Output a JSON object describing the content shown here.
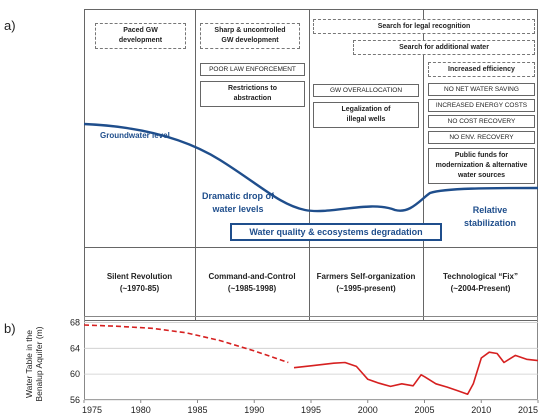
{
  "panel_a": {
    "label": "a)",
    "periods": [
      {
        "title": "Silent Revolution",
        "years": "(~1970-85)"
      },
      {
        "title": "Command-and-Control",
        "years": "(~1985-1998)"
      },
      {
        "title": "Farmers Self-organization",
        "years": "(~1995-present)"
      },
      {
        "title": "Technological “Fix”",
        "years": "(~2004-Present)"
      }
    ],
    "boxes": {
      "paced": "Paced GW development",
      "sharp": "Sharp & uncontrolled GW development",
      "poor_law": "POOR LAW ENFORCEMENT",
      "restrictions": "Restrictions to abstraction",
      "legal_recognition": "Search for legal recognition",
      "additional_water": "Search for additional water",
      "gw_overallocation": "GW OVERALLOCATION",
      "legalization": "Legalization of illegal wells",
      "increased_efficiency": "Increased efficiency",
      "no_net_saving": "NO NET WATER SAVING",
      "energy_costs": "INCREASED ENERGY COSTS",
      "no_cost_recovery": "NO COST RECOVERY",
      "no_env_recovery": "NO ENV. RECOVERY",
      "public_funds": "Public funds for modernization & alternative water sources"
    },
    "annotations": {
      "groundwater_level": "Groundwater level",
      "dramatic_drop": "Dramatic drop of water levels",
      "relative_stabilization": "Relative stabilization",
      "degradation": "Water quality & ecosystems degradation"
    },
    "colors": {
      "curve": "#1f4e8c",
      "border": "#666666"
    }
  },
  "panel_b": {
    "label": "b)",
    "chart_data": {
      "type": "line",
      "ylabel": "Water Table in the Benalup Aquifer (m)",
      "xlim": [
        1975,
        2015
      ],
      "ylim": [
        56,
        69
      ],
      "xticks": [
        1975,
        1980,
        1985,
        1990,
        1995,
        2000,
        2005,
        2010,
        2015
      ],
      "yticks": [
        56,
        60,
        64,
        68
      ],
      "series": [
        {
          "style": "dashed",
          "color": "#d62020",
          "x": [
            1975,
            1978,
            1981,
            1984,
            1987,
            1990,
            1993
          ],
          "y": [
            67.6,
            67.4,
            67.1,
            66.4,
            65.2,
            63.6,
            61.8
          ]
        },
        {
          "style": "solid",
          "color": "#d62020",
          "x": [
            1993.5,
            1995,
            1997,
            1998,
            1999,
            2000,
            2001,
            2002,
            2003,
            2004,
            2004.7,
            2005,
            2006,
            2007,
            2008,
            2008.8,
            2009.3,
            2010,
            2010.7,
            2011.4,
            2012,
            2013,
            2014,
            2015
          ],
          "y": [
            61.0,
            61.3,
            61.7,
            61.8,
            61.2,
            59.2,
            58.6,
            58.1,
            58.5,
            58.2,
            59.9,
            59.6,
            58.5,
            58.0,
            57.4,
            56.9,
            58.5,
            62.5,
            63.4,
            63.2,
            61.8,
            62.9,
            62.3,
            62.1
          ]
        }
      ]
    }
  }
}
